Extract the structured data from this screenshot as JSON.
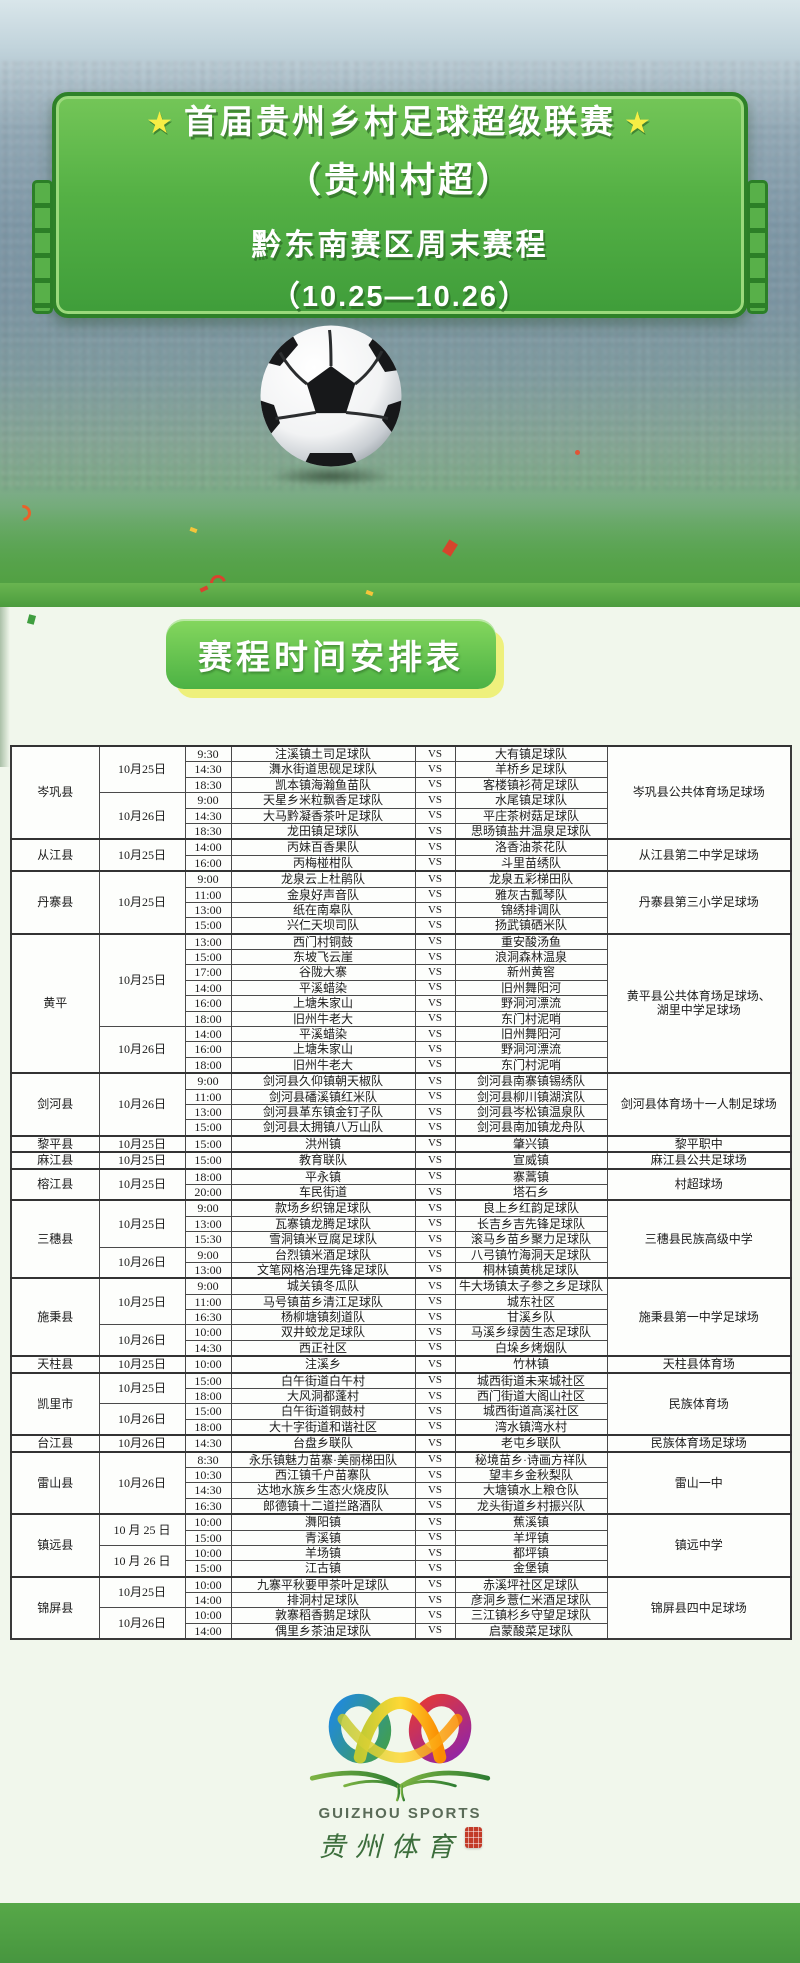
{
  "poster": {
    "star_icon": "★",
    "title_line1": "首届贵州乡村足球超级联赛",
    "title_line2": "（贵州村超）",
    "title_line3": "黔东南赛区周末赛程",
    "title_line4": "（10.25—10.26）",
    "section_title": "赛程时间安排表"
  },
  "logo": {
    "name_en": "GUIZHOU SPORTS",
    "name_zh": "贵州体育"
  },
  "colors": {
    "ticket_green": "#4fae3e",
    "pill_green": "#58c24a",
    "bar_green": "#51a341",
    "panel_bg": "#f1f7ec",
    "star_yellow": "#f6ee45",
    "seal_red": "#c23b28"
  },
  "schedule": {
    "vs_label": "VS",
    "counties": [
      {
        "name": "岑巩县",
        "venue": "岑巩县公共体育场足球场",
        "dates": [
          {
            "date": "10月25日",
            "matches": [
              {
                "time": "9:30",
                "home": "注溪镇土司足球队",
                "away": "大有镇足球队"
              },
              {
                "time": "14:30",
                "home": "㵲水街道思砚足球队",
                "away": "羊桥乡足球队"
              },
              {
                "time": "18:30",
                "home": "凯本镇海瀚鱼苗队",
                "away": "客楼镇衫荷足球队"
              }
            ]
          },
          {
            "date": "10月26日",
            "matches": [
              {
                "time": "9:00",
                "home": "天星乡米粒飘香足球队",
                "away": "水尾镇足球队"
              },
              {
                "time": "14:30",
                "home": "大马黔凝香茶叶足球队",
                "away": "平庄茶树菇足球队"
              },
              {
                "time": "18:30",
                "home": "龙田镇足球队",
                "away": "思旸镇盐井温泉足球队"
              }
            ]
          }
        ]
      },
      {
        "name": "从江县",
        "venue": "从江县第二中学足球场",
        "dates": [
          {
            "date": "10月25日",
            "matches": [
              {
                "time": "14:00",
                "home": "丙妹百香果队",
                "away": "洛香油茶花队"
              },
              {
                "time": "16:00",
                "home": "丙梅椪柑队",
                "away": "斗里苗绣队"
              }
            ]
          }
        ]
      },
      {
        "name": "丹寨县",
        "venue": "丹寨县第三小学足球场",
        "dates": [
          {
            "date": "10月25日",
            "matches": [
              {
                "time": "9:00",
                "home": "龙泉云上杜鹃队",
                "away": "龙泉五彩梯田队"
              },
              {
                "time": "11:00",
                "home": "金泉好声音队",
                "away": "雅灰古瓢琴队"
              },
              {
                "time": "13:00",
                "home": "纸在南皋队",
                "away": "锦绣排调队"
              },
              {
                "time": "15:00",
                "home": "兴仁天坝司队",
                "away": "扬武镇硒米队"
              }
            ]
          }
        ]
      },
      {
        "name": "黄平",
        "venue": "黄平县公共体育场足球场、\n湖里中学足球场",
        "dates": [
          {
            "date": "10月25日",
            "matches": [
              {
                "time": "13:00",
                "home": "西门村铜鼓",
                "away": "重安酸汤鱼"
              },
              {
                "time": "15:00",
                "home": "东坡飞云崖",
                "away": "浪洞森林温泉"
              },
              {
                "time": "17:00",
                "home": "谷陇大寨",
                "away": "新州黄窖"
              },
              {
                "time": "14:00",
                "home": "平溪蜡染",
                "away": "旧州舞阳河"
              },
              {
                "time": "16:00",
                "home": "上塘朱家山",
                "away": "野洞河漂流"
              },
              {
                "time": "18:00",
                "home": "旧州牛老大",
                "away": "东门村泥哨"
              }
            ]
          },
          {
            "date": "10月26日",
            "matches": [
              {
                "time": "14:00",
                "home": "平溪蜡染",
                "away": "旧州舞阳河"
              },
              {
                "time": "16:00",
                "home": "上塘朱家山",
                "away": "野洞河漂流"
              },
              {
                "time": "18:00",
                "home": "旧州牛老大",
                "away": "东门村泥哨"
              }
            ]
          }
        ]
      },
      {
        "name": "剑河县",
        "venue": "剑河县体育场十一人制足球场",
        "dates": [
          {
            "date": "10月26日",
            "matches": [
              {
                "time": "9:00",
                "home": "剑河县久仰镇朝天椒队",
                "away": "剑河县南寨镇锡绣队"
              },
              {
                "time": "11:00",
                "home": "剑河县磻溪镇红米队",
                "away": "剑河县柳川镇湖滨队"
              },
              {
                "time": "13:00",
                "home": "剑河县革东镇金钉子队",
                "away": "剑河县岑松镇温泉队"
              },
              {
                "time": "15:00",
                "home": "剑河县太拥镇八万山队",
                "away": "剑河县南加镇龙舟队"
              }
            ]
          }
        ]
      },
      {
        "name": "黎平县",
        "venue": "黎平职中",
        "dates": [
          {
            "date": "10月25日",
            "matches": [
              {
                "time": "15:00",
                "home": "洪州镇",
                "away": "肇兴镇"
              }
            ]
          }
        ]
      },
      {
        "name": "麻江县",
        "venue": "麻江县公共足球场",
        "dates": [
          {
            "date": "10月25日",
            "matches": [
              {
                "time": "15:00",
                "home": "教育联队",
                "away": "宣威镇"
              }
            ]
          }
        ]
      },
      {
        "name": "榕江县",
        "venue": "村超球场",
        "dates": [
          {
            "date": "10月25日",
            "matches": [
              {
                "time": "18:00",
                "home": "平永镇",
                "away": "寨蒿镇"
              },
              {
                "time": "20:00",
                "home": "车民街道",
                "away": "塔石乡"
              }
            ]
          }
        ]
      },
      {
        "name": "三穗县",
        "venue": "三穗县民族高级中学",
        "dates": [
          {
            "date": "10月25日",
            "matches": [
              {
                "time": "9:00",
                "home": "款场乡织锦足球队",
                "away": "良上乡红韵足球队"
              },
              {
                "time": "13:00",
                "home": "瓦寨镇龙腾足球队",
                "away": "长吉乡吉先锋足球队"
              },
              {
                "time": "15:30",
                "home": "雪洞镇米豆腐足球队",
                "away": "滚马乡苗乡聚力足球队"
              }
            ]
          },
          {
            "date": "10月26日",
            "matches": [
              {
                "time": "9:00",
                "home": "台烈镇米酒足球队",
                "away": "八弓镇竹海洞天足球队"
              },
              {
                "time": "13:00",
                "home": "文笔网格治理先锋足球队",
                "away": "桐林镇黄桃足球队"
              }
            ]
          }
        ]
      },
      {
        "name": "施秉县",
        "venue": "施秉县第一中学足球场",
        "dates": [
          {
            "date": "10月25日",
            "matches": [
              {
                "time": "9:00",
                "home": "城关镇冬瓜队",
                "away": "牛大场镇太子参之乡足球队"
              },
              {
                "time": "11:00",
                "home": "马号镇苗乡清江足球队",
                "away": "城东社区"
              },
              {
                "time": "16:30",
                "home": "杨柳塘镇刻道队",
                "away": "甘溪乡队"
              }
            ]
          },
          {
            "date": "10月26日",
            "matches": [
              {
                "time": "10:00",
                "home": "双井蛟龙足球队",
                "away": "马溪乡绿茵生态足球队"
              },
              {
                "time": "14:30",
                "home": "西正社区",
                "away": "白垛乡烤烟队"
              }
            ]
          }
        ]
      },
      {
        "name": "天柱县",
        "venue": "天柱县体育场",
        "dates": [
          {
            "date": "10月25日",
            "matches": [
              {
                "time": "10:00",
                "home": "注溪乡",
                "away": "竹林镇"
              }
            ]
          }
        ]
      },
      {
        "name": "凯里市",
        "venue": "民族体育场",
        "dates": [
          {
            "date": "10月25日",
            "matches": [
              {
                "time": "15:00",
                "home": "白午街道白午村",
                "away": "城西街道未来城社区"
              },
              {
                "time": "18:00",
                "home": "大风洞都蓬村",
                "away": "西门街道大阁山社区"
              }
            ]
          },
          {
            "date": "10月26日",
            "matches": [
              {
                "time": "15:00",
                "home": "白午街道铜鼓村",
                "away": "城西街道高溪社区"
              },
              {
                "time": "18:00",
                "home": "大十字街道和谐社区",
                "away": "湾水镇湾水村"
              }
            ]
          }
        ]
      },
      {
        "name": "台江县",
        "venue": "民族体育场足球场",
        "dates": [
          {
            "date": "10月26日",
            "matches": [
              {
                "time": "14:30",
                "home": "台盘乡联队",
                "away": "老屯乡联队"
              }
            ]
          }
        ]
      },
      {
        "name": "雷山县",
        "venue": "雷山一中",
        "dates": [
          {
            "date": "10月26日",
            "matches": [
              {
                "time": "8:30",
                "home": "永乐镇魅力苗寨·美丽梯田队",
                "away": "秘境苗乡·诗画方祥队"
              },
              {
                "time": "10:30",
                "home": "西江镇千户苗寨队",
                "away": "望丰乡金秋梨队"
              },
              {
                "time": "14:30",
                "home": "达地水族乡生态火烧皮队",
                "away": "大塘镇水上粮仓队"
              },
              {
                "time": "16:30",
                "home": "郎德镇十二道拦路酒队",
                "away": "龙头街道乡村振兴队"
              }
            ]
          }
        ]
      },
      {
        "name": "镇远县",
        "venue": "镇远中学",
        "dates": [
          {
            "date": "10 月 25 日",
            "matches": [
              {
                "time": "10:00",
                "home": "㵲阳镇",
                "away": "蕉溪镇"
              },
              {
                "time": "15:00",
                "home": "青溪镇",
                "away": "羊坪镇"
              }
            ]
          },
          {
            "date": "10 月 26 日",
            "matches": [
              {
                "time": "10:00",
                "home": "羊场镇",
                "away": "都坪镇"
              },
              {
                "time": "15:00",
                "home": "江古镇",
                "away": "金堡镇"
              }
            ]
          }
        ]
      },
      {
        "name": "锦屏县",
        "venue": "锦屏县四中足球场",
        "dates": [
          {
            "date": "10月25日",
            "matches": [
              {
                "time": "10:00",
                "home": "九寨平秋要甲茶叶足球队",
                "away": "赤溪坪社区足球队"
              },
              {
                "time": "14:00",
                "home": "排洞村足球队",
                "away": "彦洞乡薏仁米酒足球队"
              }
            ]
          },
          {
            "date": "10月26日",
            "matches": [
              {
                "time": "10:00",
                "home": "敦寨稻香鹅足球队",
                "away": "三江镇杉乡守望足球队"
              },
              {
                "time": "14:00",
                "home": "偶里乡茶油足球队",
                "away": "启蒙酸菜足球队"
              }
            ]
          }
        ]
      }
    ]
  }
}
